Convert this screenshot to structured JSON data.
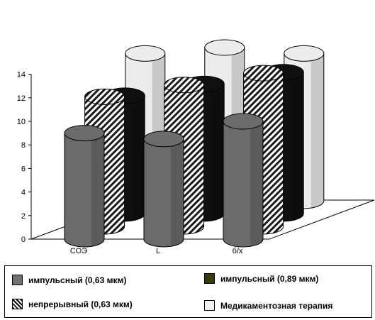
{
  "chart_data": {
    "type": "bar",
    "style": "3d-cylinder",
    "categories": [
      "СОЭ",
      "L",
      "б/х"
    ],
    "yticks": [
      0,
      2,
      4,
      6,
      8,
      10,
      12,
      14
    ],
    "ylim": [
      0,
      14
    ],
    "grid": false,
    "legend_position": "bottom",
    "series": [
      {
        "name": "импульсный (0,63 мкм)",
        "values": [
          9,
          8.5,
          10
        ],
        "color": "#6b6b6b",
        "pattern": "solid"
      },
      {
        "name": "импульсный (0,89 мкм)",
        "values": [
          10,
          11,
          12
        ],
        "color": "#101010",
        "pattern": "solid"
      },
      {
        "name": "непрерывный (0,63 мкм)",
        "values": [
          11,
          12,
          13
        ],
        "color": "#ffffff",
        "pattern": "hatch"
      },
      {
        "name": "Медикаментозная терапия",
        "values": [
          12.5,
          13,
          12.5
        ],
        "color": "#ececec",
        "pattern": "solid"
      }
    ]
  },
  "legend": {
    "items": [
      {
        "label": "импульсный (0,63 мкм)",
        "swatch_color": "#707070"
      },
      {
        "label": "импульсный (0,89 мкм)",
        "swatch_color": "#3b3a0e"
      },
      {
        "label": "непрерывный (0,63 мкм)",
        "swatch_color": "hatch"
      },
      {
        "label": "Медикаментозная терапия",
        "swatch_color": "#f0f0f0"
      }
    ]
  }
}
